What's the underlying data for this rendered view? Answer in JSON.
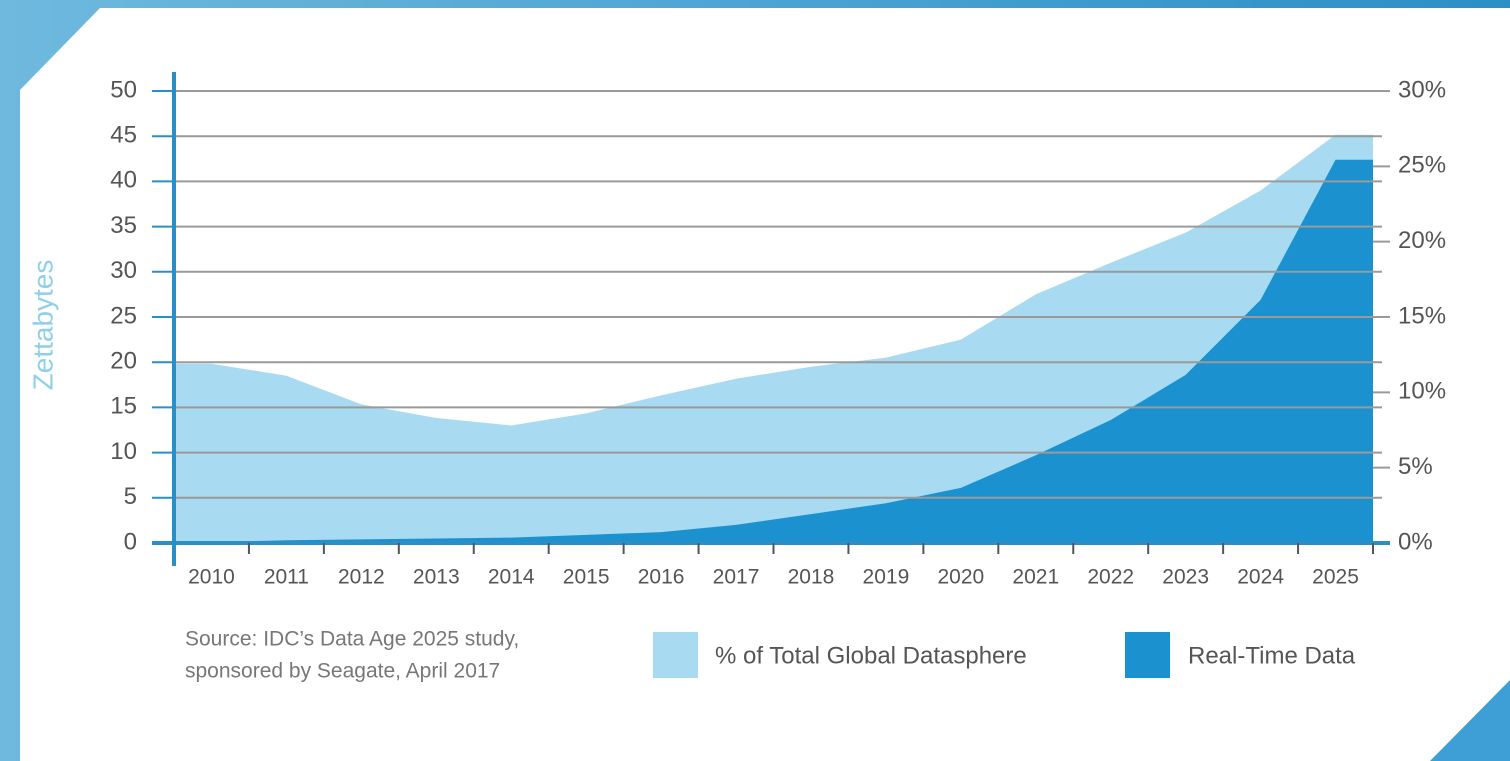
{
  "chart_data": {
    "type": "area",
    "categories": [
      "2010",
      "2011",
      "2012",
      "2013",
      "2014",
      "2015",
      "2016",
      "2017",
      "2018",
      "2019",
      "2020",
      "2021",
      "2022",
      "2023",
      "2024",
      "2025"
    ],
    "ylabel": "Zettabytes",
    "ylim": [
      0,
      50
    ],
    "yticks": [
      0,
      5,
      10,
      15,
      20,
      25,
      30,
      35,
      40,
      45,
      50
    ],
    "y2lim": [
      0,
      30
    ],
    "y2ticks": [
      {
        "value": 0,
        "label": "0%"
      },
      {
        "value": 5,
        "label": "5%"
      },
      {
        "value": 10,
        "label": "10%"
      },
      {
        "value": 15,
        "label": "15%"
      },
      {
        "value": 20,
        "label": "20%"
      },
      {
        "value": 25,
        "label": "25%"
      },
      {
        "value": 30,
        "label": "30%"
      }
    ],
    "grid": true,
    "series": [
      {
        "name": "% of Total Global Datasphere",
        "color": "#a8daf1",
        "axis": "y2",
        "values": [
          11.9,
          11.1,
          9.2,
          8.3,
          7.8,
          8.6,
          9.8,
          10.9,
          11.7,
          12.3,
          13.5,
          16.5,
          18.6,
          20.6,
          23.4,
          27.1
        ]
      },
      {
        "name": "Real-Time Data",
        "color": "#1b92cf",
        "values": [
          0.1,
          0.3,
          0.4,
          0.5,
          0.6,
          0.9,
          1.2,
          2.0,
          3.2,
          4.4,
          6.1,
          9.7,
          13.6,
          18.6,
          26.9,
          42.4
        ]
      }
    ],
    "source": [
      "Source: IDC’s Data Age 2025 study,",
      "sponsored by Seagate, April 2017"
    ]
  }
}
